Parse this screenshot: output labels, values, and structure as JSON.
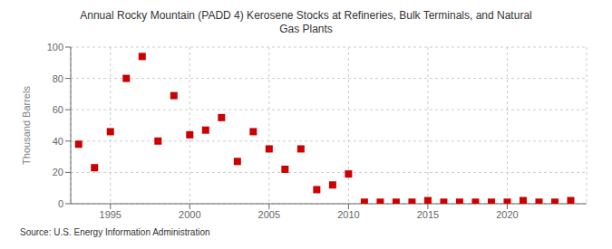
{
  "chart_data": {
    "type": "scatter",
    "title": "Annual Rocky Mountain (PADD 4) Kerosene Stocks at Refineries, Bulk Terminals, and Natural\nGas Plants",
    "ylabel": "Thousand Barrels",
    "annotations": [
      "Source: U.S. Energy Information Administration"
    ],
    "x": [
      1993,
      1994,
      1995,
      1996,
      1997,
      1998,
      1999,
      2000,
      2001,
      2002,
      2003,
      2004,
      2005,
      2006,
      2007,
      2008,
      2009,
      2010,
      2011,
      2012,
      2013,
      2014,
      2015,
      2016,
      2017,
      2018,
      2019,
      2020,
      2021,
      2022,
      2023,
      2024
    ],
    "values": [
      38,
      23,
      46,
      80,
      94,
      40,
      69,
      44,
      47,
      55,
      27,
      46,
      35,
      22,
      35,
      9,
      12,
      19,
      1,
      1,
      1,
      1,
      2,
      1,
      1,
      1,
      1,
      1,
      2,
      1,
      1,
      2
    ],
    "color": "#cc0000",
    "marker": "square",
    "xlim": [
      1992.5,
      2025
    ],
    "ylim": [
      0,
      100
    ],
    "xticks": [
      1995,
      2000,
      2005,
      2010,
      2015,
      2020
    ],
    "yticks": [
      0,
      20,
      40,
      60,
      80,
      100
    ],
    "grid": true
  }
}
